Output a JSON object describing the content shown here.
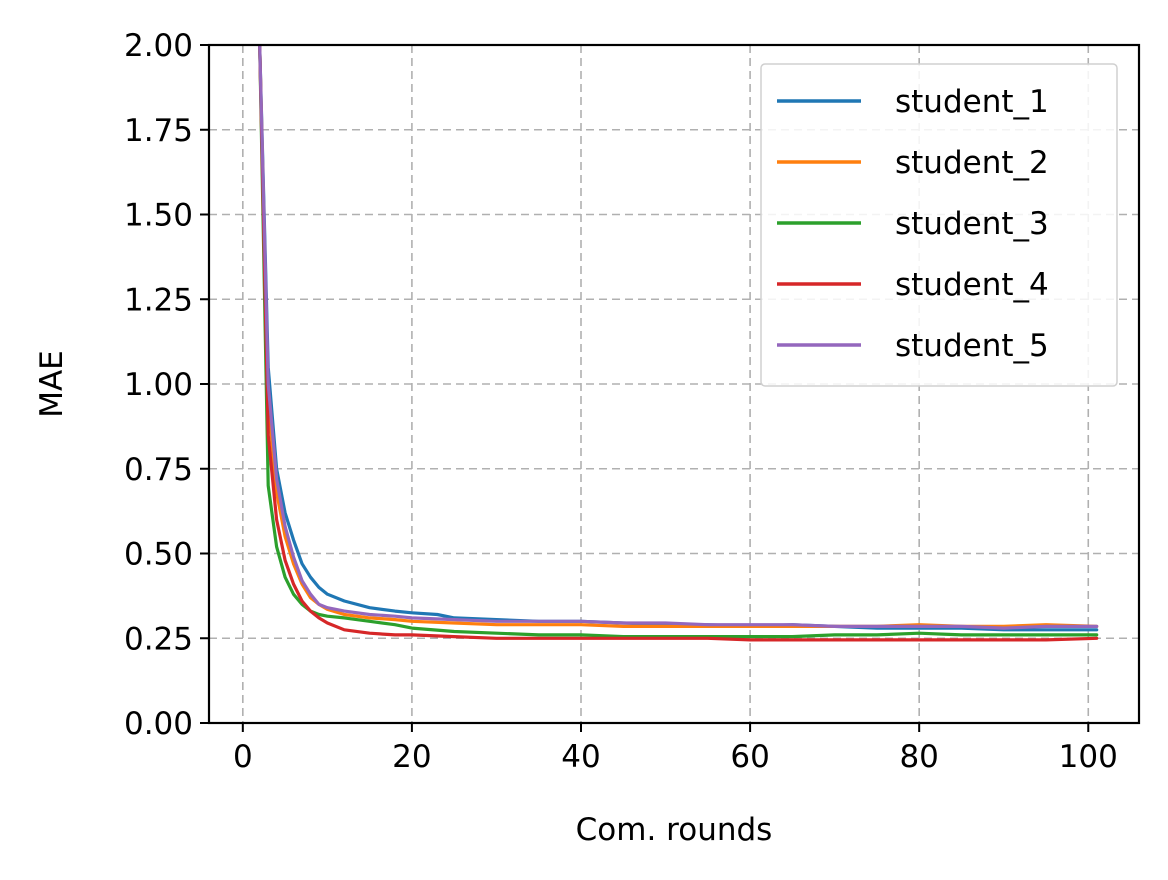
{
  "chart_data": {
    "type": "line",
    "title": "",
    "xlabel": "Com. rounds",
    "ylabel": "MAE",
    "xlim": [
      -4,
      106
    ],
    "ylim": [
      0,
      2.0
    ],
    "xticks": [
      0,
      20,
      40,
      60,
      80,
      100
    ],
    "xtick_labels": [
      "0",
      "20",
      "40",
      "60",
      "80",
      "100"
    ],
    "yticks": [
      0,
      0.25,
      0.5,
      0.75,
      1.0,
      1.25,
      1.5,
      1.75,
      2.0
    ],
    "ytick_labels": [
      "0.00",
      "0.25",
      "0.50",
      "0.75",
      "1.00",
      "1.25",
      "1.50",
      "1.75",
      "2.00"
    ],
    "grid": true,
    "legend_position": "top-right",
    "series": [
      {
        "name": "student_1",
        "color": "#1f77b4",
        "x": [
          2,
          3,
          4,
          5,
          6,
          7,
          8,
          9,
          10,
          12,
          15,
          18,
          20,
          23,
          25,
          30,
          35,
          40,
          45,
          50,
          55,
          60,
          65,
          70,
          75,
          80,
          85,
          90,
          95,
          101
        ],
        "y": [
          2.0,
          1.05,
          0.75,
          0.62,
          0.54,
          0.47,
          0.43,
          0.4,
          0.38,
          0.36,
          0.34,
          0.33,
          0.325,
          0.32,
          0.31,
          0.305,
          0.3,
          0.3,
          0.295,
          0.29,
          0.29,
          0.285,
          0.29,
          0.285,
          0.28,
          0.28,
          0.28,
          0.275,
          0.275,
          0.275
        ]
      },
      {
        "name": "student_2",
        "color": "#ff7f0e",
        "x": [
          2,
          3,
          4,
          5,
          6,
          7,
          8,
          9,
          10,
          12,
          15,
          18,
          20,
          25,
          30,
          35,
          40,
          45,
          50,
          55,
          60,
          65,
          70,
          75,
          80,
          85,
          90,
          95,
          101
        ],
        "y": [
          2.0,
          0.95,
          0.68,
          0.55,
          0.47,
          0.41,
          0.37,
          0.35,
          0.335,
          0.32,
          0.31,
          0.305,
          0.3,
          0.295,
          0.29,
          0.29,
          0.29,
          0.285,
          0.285,
          0.285,
          0.285,
          0.285,
          0.285,
          0.285,
          0.29,
          0.285,
          0.285,
          0.29,
          0.285
        ]
      },
      {
        "name": "student_3",
        "color": "#2ca02c",
        "x": [
          2,
          3,
          4,
          5,
          6,
          7,
          8,
          9,
          10,
          12,
          15,
          18,
          20,
          25,
          30,
          35,
          40,
          45,
          50,
          55,
          60,
          65,
          70,
          75,
          80,
          85,
          90,
          95,
          101
        ],
        "y": [
          2.0,
          0.7,
          0.52,
          0.43,
          0.38,
          0.35,
          0.33,
          0.32,
          0.315,
          0.31,
          0.3,
          0.29,
          0.28,
          0.27,
          0.265,
          0.26,
          0.26,
          0.255,
          0.255,
          0.255,
          0.255,
          0.255,
          0.26,
          0.26,
          0.265,
          0.26,
          0.26,
          0.26,
          0.26
        ]
      },
      {
        "name": "student_4",
        "color": "#d62728",
        "x": [
          2,
          3,
          4,
          5,
          6,
          7,
          8,
          9,
          10,
          12,
          15,
          18,
          20,
          25,
          30,
          35,
          40,
          45,
          50,
          55,
          60,
          65,
          70,
          75,
          80,
          85,
          90,
          95,
          101
        ],
        "y": [
          2.0,
          0.85,
          0.6,
          0.48,
          0.41,
          0.36,
          0.33,
          0.31,
          0.295,
          0.275,
          0.265,
          0.26,
          0.26,
          0.255,
          0.25,
          0.25,
          0.25,
          0.25,
          0.25,
          0.25,
          0.245,
          0.245,
          0.245,
          0.245,
          0.245,
          0.245,
          0.245,
          0.245,
          0.25
        ]
      },
      {
        "name": "student_5",
        "color": "#9467bd",
        "x": [
          2,
          3,
          4,
          5,
          6,
          7,
          8,
          9,
          10,
          12,
          15,
          18,
          20,
          25,
          30,
          35,
          40,
          45,
          50,
          55,
          60,
          65,
          70,
          75,
          80,
          85,
          90,
          95,
          101
        ],
        "y": [
          2.0,
          1.0,
          0.72,
          0.58,
          0.49,
          0.42,
          0.38,
          0.35,
          0.34,
          0.33,
          0.32,
          0.315,
          0.31,
          0.305,
          0.3,
          0.3,
          0.3,
          0.295,
          0.295,
          0.29,
          0.29,
          0.29,
          0.285,
          0.285,
          0.285,
          0.285,
          0.28,
          0.285,
          0.285
        ]
      }
    ]
  }
}
